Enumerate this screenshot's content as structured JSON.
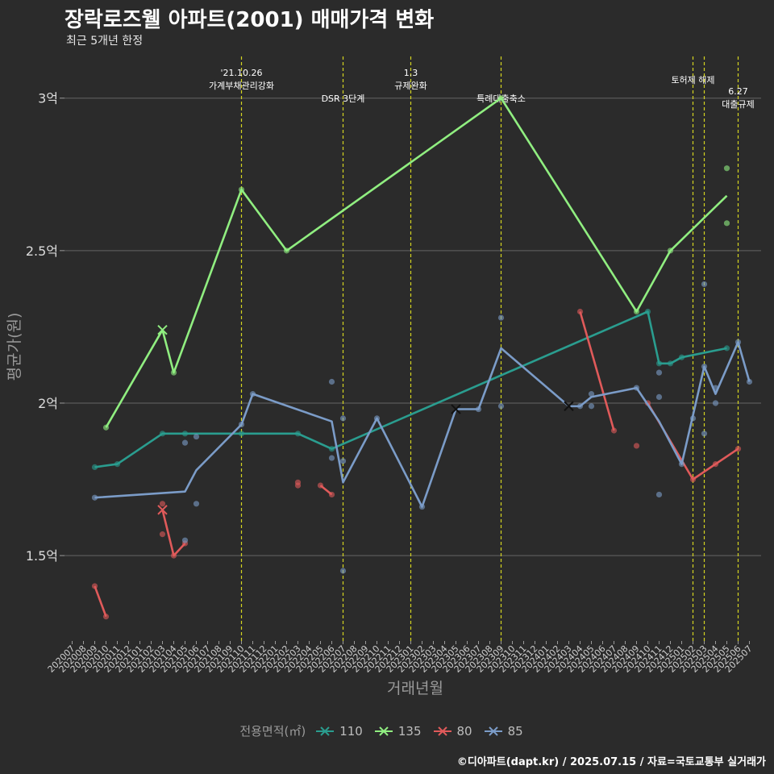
{
  "title": "장락로즈웰 아파트(2001) 매매가격 변화",
  "subtitle": "최근 5개년 한정",
  "caption": "©디아파트(dapt.kr) / 2025.07.15 / 자료=국토교통부 실거래가",
  "legend": {
    "title": "전용면적(㎡)",
    "items": [
      {
        "label": "110",
        "color": "#2a9d8f"
      },
      {
        "label": "135",
        "color": "#90ee80"
      },
      {
        "label": "80",
        "color": "#e05a5a"
      },
      {
        "label": "85",
        "color": "#7b9cc8"
      }
    ]
  },
  "chart_data": {
    "type": "line",
    "xlabel": "거래년월",
    "ylabel": "평균가(원)",
    "x_categories": [
      "202007",
      "202008",
      "202009",
      "202010",
      "202011",
      "202012",
      "202101",
      "202102",
      "202103",
      "202104",
      "202105",
      "202106",
      "202107",
      "202108",
      "202109",
      "202110",
      "202111",
      "202112",
      "202201",
      "202202",
      "202203",
      "202204",
      "202205",
      "202206",
      "202207",
      "202208",
      "202209",
      "202210",
      "202211",
      "202212",
      "202301",
      "202302",
      "202303",
      "202304",
      "202305",
      "202306",
      "202307",
      "202308",
      "202309",
      "202310",
      "202311",
      "202312",
      "202401",
      "202402",
      "202403",
      "202404",
      "202405",
      "202406",
      "202407",
      "202408",
      "202409",
      "202410",
      "202411",
      "202412",
      "202501",
      "202502",
      "202503",
      "202504",
      "202505",
      "202506",
      "202507"
    ],
    "y_ticks": [
      {
        "value": 1.5,
        "label": "1.5억"
      },
      {
        "value": 2.0,
        "label": "2억"
      },
      {
        "value": 2.5,
        "label": "2.5억"
      },
      {
        "value": 3.0,
        "label": "3억"
      }
    ],
    "ylim": [
      1.22,
      3.15
    ],
    "y_unit": "억",
    "grid": "horizontal",
    "legend_position": "bottom",
    "events": [
      {
        "x": "202110",
        "label1": "'21.10.26",
        "label2": "가계부채관리강화",
        "level": 1
      },
      {
        "x": "202207",
        "label1": "DSR 3단계",
        "label2": "",
        "level": 3
      },
      {
        "x": "202301",
        "label1": "1.3",
        "label2": "규제완화",
        "level": 1
      },
      {
        "x": "202309",
        "label1": "특례대출축소",
        "label2": "",
        "level": 3
      },
      {
        "x": "202502",
        "label1": "토허제 해제",
        "label2": "",
        "level": 2
      },
      {
        "x": "202503",
        "label1": "",
        "label2": "",
        "level": 0
      },
      {
        "x": "202506",
        "label1": "6.27",
        "label2": "대출규제",
        "level": 4
      }
    ],
    "series": [
      {
        "name": "110",
        "color": "#2a9d8f",
        "line": [
          [
            "202009",
            1.79
          ],
          [
            "202011",
            1.8
          ],
          [
            "202103",
            1.9
          ],
          [
            "202105",
            1.9
          ],
          [
            "202110",
            1.9
          ],
          [
            "202203",
            1.9
          ],
          [
            "202206",
            1.85
          ],
          [
            "202410",
            2.3
          ],
          [
            "202411",
            2.13
          ],
          [
            "202412",
            2.13
          ],
          [
            "202501",
            2.15
          ],
          [
            "202505",
            2.18
          ]
        ],
        "points": [
          [
            "202009",
            1.79
          ],
          [
            "202011",
            1.8
          ],
          [
            "202103",
            1.9
          ],
          [
            "202105",
            1.9
          ],
          [
            "202110",
            1.9
          ],
          [
            "202203",
            1.9
          ],
          [
            "202206",
            1.85
          ],
          [
            "202410",
            2.3
          ],
          [
            "202411",
            2.13
          ],
          [
            "202412",
            2.13
          ],
          [
            "202501",
            2.15
          ],
          [
            "202505",
            2.18
          ]
        ],
        "markers": []
      },
      {
        "name": "135",
        "color": "#90ee80",
        "line": [
          [
            "202010",
            1.92
          ],
          [
            "202103",
            2.24
          ],
          [
            "202104",
            2.1
          ],
          [
            "202110",
            2.7
          ],
          [
            "202202",
            2.5
          ],
          [
            "202309",
            3.0
          ],
          [
            "202409",
            2.3
          ],
          [
            "202412",
            2.5
          ],
          [
            "202505",
            2.68
          ]
        ],
        "points": [
          [
            "202010",
            1.92
          ],
          [
            "202104",
            2.1
          ],
          [
            "202110",
            2.7
          ],
          [
            "202202",
            2.5
          ],
          [
            "202309",
            3.0
          ],
          [
            "202409",
            2.3
          ],
          [
            "202412",
            2.5
          ],
          [
            "202505",
            2.77
          ],
          [
            "202505",
            2.59
          ]
        ],
        "markers": [
          [
            "202103",
            2.24
          ]
        ]
      },
      {
        "name": "80",
        "color": "#e05a5a",
        "line_segments": [
          [
            [
              "202009",
              1.4
            ],
            [
              "202010",
              1.3
            ]
          ],
          [
            [
              "202103",
              1.65
            ],
            [
              "202104",
              1.5
            ],
            [
              "202105",
              1.54
            ]
          ],
          [
            [
              "202205",
              1.73
            ],
            [
              "202206",
              1.7
            ]
          ],
          [
            [
              "202404",
              2.3
            ],
            [
              "202407",
              1.91
            ]
          ],
          [
            [
              "202410",
              2.0
            ],
            [
              "202502",
              1.75
            ],
            [
              "202504",
              1.8
            ],
            [
              "202506",
              1.85
            ]
          ]
        ],
        "points": [
          [
            "202009",
            1.4
          ],
          [
            "202010",
            1.3
          ],
          [
            "202103",
            1.67
          ],
          [
            "202103",
            1.57
          ],
          [
            "202104",
            1.5
          ],
          [
            "202105",
            1.54
          ],
          [
            "202203",
            1.74
          ],
          [
            "202203",
            1.73
          ],
          [
            "202205",
            1.73
          ],
          [
            "202206",
            1.7
          ],
          [
            "202404",
            2.3
          ],
          [
            "202407",
            1.91
          ],
          [
            "202409",
            1.86
          ],
          [
            "202410",
            2.0
          ],
          [
            "202502",
            1.75
          ],
          [
            "202504",
            1.8
          ],
          [
            "202506",
            1.85
          ]
        ],
        "markers": [
          [
            "202103",
            1.65
          ]
        ]
      },
      {
        "name": "85",
        "color": "#7b9cc8",
        "line": [
          [
            "202009",
            1.69
          ],
          [
            "202105",
            1.71
          ],
          [
            "202106",
            1.78
          ],
          [
            "202110",
            1.93
          ],
          [
            "202111",
            2.03
          ],
          [
            "202206",
            1.94
          ],
          [
            "202207",
            1.74
          ],
          [
            "202210",
            1.95
          ],
          [
            "202302",
            1.66
          ],
          [
            "202305",
            1.98
          ],
          [
            "202307",
            1.98
          ],
          [
            "202309",
            2.18
          ],
          [
            "202403",
            1.99
          ],
          [
            "202404",
            1.99
          ],
          [
            "202405",
            2.02
          ],
          [
            "202409",
            2.05
          ],
          [
            "202411",
            1.94
          ],
          [
            "202501",
            1.8
          ],
          [
            "202503",
            2.12
          ],
          [
            "202504",
            2.03
          ],
          [
            "202506",
            2.2
          ],
          [
            "202507",
            2.07
          ]
        ],
        "points": [
          [
            "202009",
            1.69
          ],
          [
            "202105",
            1.87
          ],
          [
            "202105",
            1.55
          ],
          [
            "202106",
            1.89
          ],
          [
            "202106",
            1.67
          ],
          [
            "202110",
            1.93
          ],
          [
            "202111",
            2.03
          ],
          [
            "202206",
            2.07
          ],
          [
            "202206",
            1.82
          ],
          [
            "202207",
            1.95
          ],
          [
            "202207",
            1.81
          ],
          [
            "202207",
            1.45
          ],
          [
            "202210",
            1.95
          ],
          [
            "202302",
            1.66
          ],
          [
            "202307",
            1.98
          ],
          [
            "202309",
            2.28
          ],
          [
            "202309",
            1.99
          ],
          [
            "202404",
            1.99
          ],
          [
            "202405",
            2.03
          ],
          [
            "202405",
            1.99
          ],
          [
            "202409",
            2.05
          ],
          [
            "202411",
            2.1
          ],
          [
            "202411",
            2.02
          ],
          [
            "202411",
            1.7
          ],
          [
            "202501",
            1.8
          ],
          [
            "202502",
            1.95
          ],
          [
            "202503",
            2.39
          ],
          [
            "202503",
            1.9
          ],
          [
            "202503",
            2.12
          ],
          [
            "202504",
            2.05
          ],
          [
            "202504",
            2.0
          ],
          [
            "202506",
            2.2
          ],
          [
            "202507",
            2.07
          ]
        ],
        "markers": [
          [
            "202305",
            1.98
          ],
          [
            "202403",
            1.99
          ]
        ]
      }
    ]
  }
}
